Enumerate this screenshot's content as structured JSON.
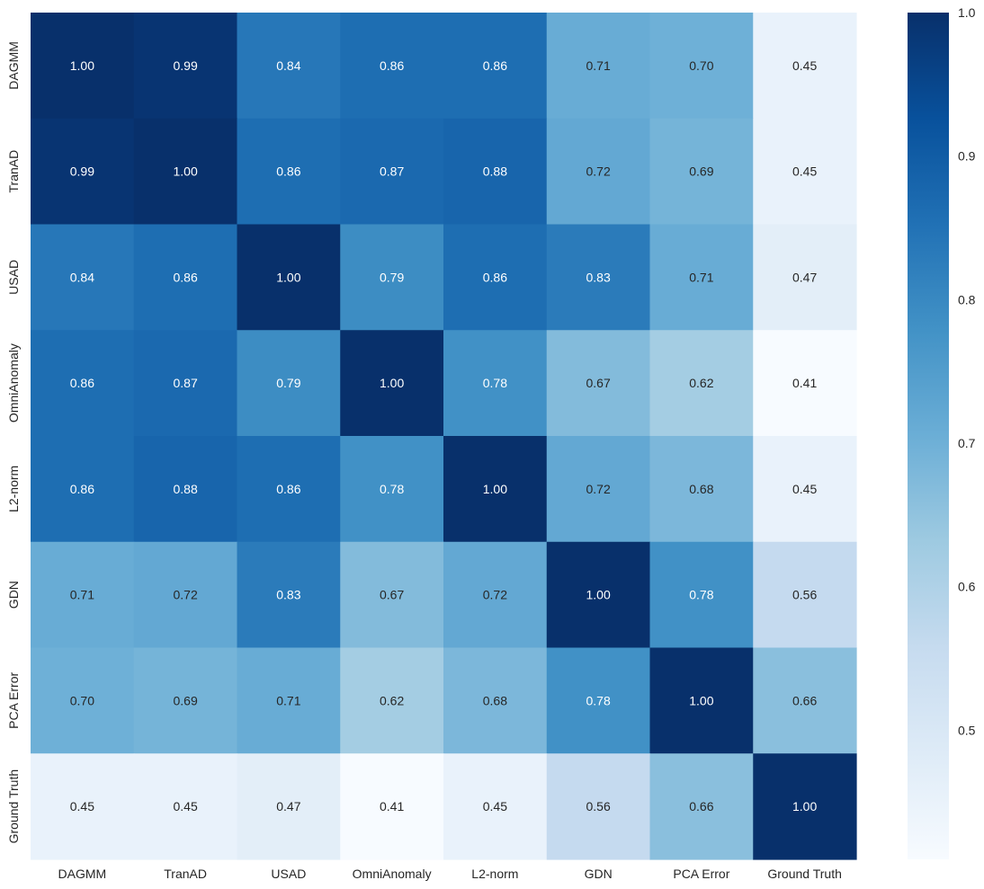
{
  "chart_data": {
    "type": "heatmap",
    "title": "",
    "xlabel": "",
    "ylabel": "",
    "rows": [
      "DAGMM",
      "TranAD",
      "USAD",
      "OmniAnomaly",
      "L2-norm",
      "GDN",
      "PCA Error",
      "Ground Truth"
    ],
    "columns": [
      "DAGMM",
      "TranAD",
      "USAD",
      "OmniAnomaly",
      "L2-norm",
      "GDN",
      "PCA Error",
      "Ground Truth"
    ],
    "values": [
      [
        1.0,
        0.99,
        0.84,
        0.86,
        0.86,
        0.71,
        0.7,
        0.45
      ],
      [
        0.99,
        1.0,
        0.86,
        0.87,
        0.88,
        0.72,
        0.69,
        0.45
      ],
      [
        0.84,
        0.86,
        1.0,
        0.79,
        0.86,
        0.83,
        0.71,
        0.47
      ],
      [
        0.86,
        0.87,
        0.79,
        1.0,
        0.78,
        0.67,
        0.62,
        0.41
      ],
      [
        0.86,
        0.88,
        0.86,
        0.78,
        1.0,
        0.72,
        0.68,
        0.45
      ],
      [
        0.71,
        0.72,
        0.83,
        0.67,
        0.72,
        1.0,
        0.78,
        0.56
      ],
      [
        0.7,
        0.69,
        0.71,
        0.62,
        0.68,
        0.78,
        1.0,
        0.66
      ],
      [
        0.45,
        0.45,
        0.47,
        0.41,
        0.45,
        0.56,
        0.66,
        1.0
      ]
    ],
    "value_format": "0.00",
    "colormap": "Blues",
    "colormap_stops": [
      "#f7fbff",
      "#deebf7",
      "#c6dbef",
      "#9ecae1",
      "#6baed6",
      "#4292c6",
      "#2171b5",
      "#08519c",
      "#08306b"
    ],
    "vmin": 0.41,
    "vmax": 1.0,
    "colorbar": {
      "ticks": [
        0.5,
        0.6,
        0.7,
        0.8,
        0.9,
        1.0
      ],
      "tick_labels": [
        "0.5",
        "0.6",
        "0.7",
        "0.8",
        "0.9",
        "1.0"
      ]
    },
    "annotation_colors": {
      "dark": "#262626",
      "light": "#ffffff"
    }
  }
}
